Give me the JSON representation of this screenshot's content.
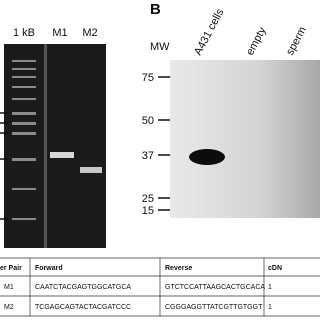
{
  "panel_a": {
    "lanes": [
      "1 kB",
      "M1",
      "M2"
    ]
  },
  "panel_b": {
    "label": "B",
    "mw_label": "MW",
    "markers": [
      "75",
      "50",
      "37",
      "25",
      "15"
    ],
    "samples": [
      "A431 cells",
      "empty",
      "sperm"
    ]
  },
  "table": {
    "header": [
      "er Pair",
      "Forward",
      "Reverse",
      "cDN"
    ],
    "rows": [
      [
        "M1",
        "CAATCTACGAGTGGCATGCA",
        "GTCTCCATTAAGCACTGCACA",
        "1"
      ],
      [
        "M2",
        "TCGAGCAGTACTACGATCCC",
        "CGGGAGGTTATCGTTGTGGT",
        "1"
      ]
    ]
  }
}
